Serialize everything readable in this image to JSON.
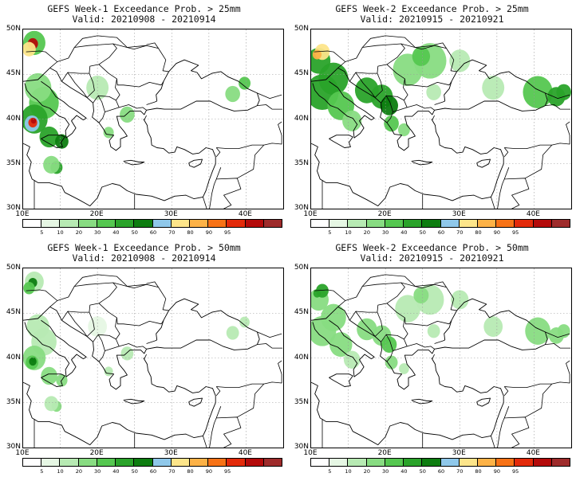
{
  "panels": [
    {
      "title": "GEFS Week-1 Exceedance Prob. > 25mm",
      "valid": "Valid: 20210908 - 20210914",
      "intensity": 1.0,
      "variant": "w1"
    },
    {
      "title": "GEFS Week-2 Exceedance Prob. > 25mm",
      "valid": "Valid: 20210915 - 20210921",
      "intensity": 1.0,
      "variant": "w2"
    },
    {
      "title": "GEFS Week-1 Exceedance Prob. > 50mm",
      "valid": "Valid: 20210908 - 20210914",
      "intensity": 0.45,
      "variant": "w1"
    },
    {
      "title": "GEFS Week-2 Exceedance Prob. > 50mm",
      "valid": "Valid: 20210915 - 20210921",
      "intensity": 0.55,
      "variant": "w2"
    }
  ],
  "axes": {
    "lat_labels": [
      "50N",
      "45N",
      "40N",
      "35N",
      "30N"
    ],
    "lon_labels": [
      "10E",
      "20E",
      "30E",
      "40E"
    ],
    "lat_range": [
      30,
      50
    ],
    "lon_range": [
      10,
      45
    ]
  },
  "colorbar": {
    "labels": [
      "5",
      "10",
      "20",
      "30",
      "40",
      "50",
      "60",
      "70",
      "80",
      "90",
      "95"
    ],
    "colors": [
      "#ffffff",
      "#e6f7e4",
      "#b7eab3",
      "#88dc82",
      "#55c750",
      "#2aa32a",
      "#0d7d10",
      "#8fc8ea",
      "#fde58a",
      "#fdb247",
      "#f77216",
      "#e32a0a",
      "#b40a0a",
      "#9e2b2b"
    ]
  }
}
